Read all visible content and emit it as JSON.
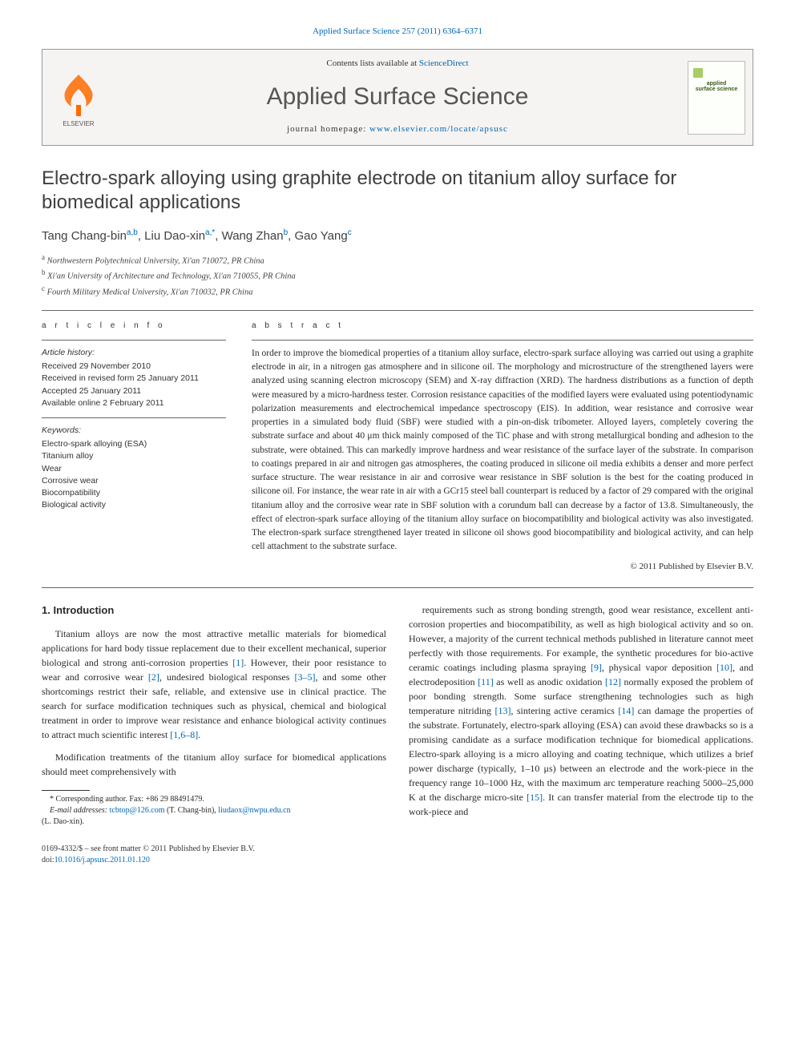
{
  "journal_ref": "Applied Surface Science 257 (2011) 6364–6371",
  "masthead": {
    "contents_prefix": "Contents lists available at ",
    "contents_link": "ScienceDirect",
    "journal_name": "Applied Surface Science",
    "homepage_prefix": "journal homepage: ",
    "homepage_url": "www.elsevier.com/locate/apsusc",
    "cover_line1": "applied",
    "cover_line2": "surface science"
  },
  "title": "Electro-spark alloying using graphite electrode on titanium alloy surface for biomedical applications",
  "authors_html": "Tang Chang-bin<sup>a,b</sup>, Liu Dao-xin<sup>a,*</sup>, Wang Zhan<sup>b</sup>, Gao Yang<sup>c</sup>",
  "affiliations": [
    {
      "sup": "a",
      "text": "Northwestern Polytechnical University, Xi'an 710072, PR China"
    },
    {
      "sup": "b",
      "text": "Xi'an University of Architecture and Technology, Xi'an 710055, PR China"
    },
    {
      "sup": "c",
      "text": "Fourth Military Medical University, Xi'an 710032, PR China"
    }
  ],
  "article_info": {
    "heading": "a r t i c l e   i n f o",
    "history_label": "Article history:",
    "history": [
      "Received 29 November 2010",
      "Received in revised form 25 January 2011",
      "Accepted 25 January 2011",
      "Available online 2 February 2011"
    ],
    "keywords_label": "Keywords:",
    "keywords": [
      "Electro-spark alloying (ESA)",
      "Titanium alloy",
      "Wear",
      "Corrosive wear",
      "Biocompatibility",
      "Biological activity"
    ]
  },
  "abstract": {
    "heading": "a b s t r a c t",
    "text": "In order to improve the biomedical properties of a titanium alloy surface, electro-spark surface alloying was carried out using a graphite electrode in air, in a nitrogen gas atmosphere and in silicone oil. The morphology and microstructure of the strengthened layers were analyzed using scanning electron microscopy (SEM) and X-ray diffraction (XRD). The hardness distributions as a function of depth were measured by a micro-hardness tester. Corrosion resistance capacities of the modified layers were evaluated using potentiodynamic polarization measurements and electrochemical impedance spectroscopy (EIS). In addition, wear resistance and corrosive wear properties in a simulated body fluid (SBF) were studied with a pin-on-disk tribometer. Alloyed layers, completely covering the substrate surface and about 40 μm thick mainly composed of the TiC phase and with strong metallurgical bonding and adhesion to the substrate, were obtained. This can markedly improve hardness and wear resistance of the surface layer of the substrate. In comparison to coatings prepared in air and nitrogen gas atmospheres, the coating produced in silicone oil media exhibits a denser and more perfect surface structure. The wear resistance in air and corrosive wear resistance in SBF solution is the best for the coating produced in silicone oil. For instance, the wear rate in air with a GCr15 steel ball counterpart is reduced by a factor of 29 compared with the original titanium alloy and the corrosive wear rate in SBF solution with a corundum ball can decrease by a factor of 13.8. Simultaneously, the effect of electron-spark surface alloying of the titanium alloy surface on biocompatibility and biological activity was also investigated. The electron-spark surface strengthened layer treated in silicone oil shows good biocompatibility and biological activity, and can help cell attachment to the substrate surface.",
    "copyright": "© 2011 Published by Elsevier B.V."
  },
  "intro": {
    "heading": "1. Introduction",
    "p1_pre": "Titanium alloys are now the most attractive metallic materials for biomedical applications for hard body tissue replacement due to their excellent mechanical, superior biological and strong anti-corrosion properties ",
    "r1": "[1]",
    "p1_mid1": ". However, their poor resistance to wear and corrosive wear ",
    "r2": "[2]",
    "p1_mid2": ", undesired biological responses ",
    "r3": "[3–5]",
    "p1_mid3": ", and some other shortcomings restrict their safe, reliable, and extensive use in clinical practice. The search for surface modification techniques such as physical, chemical and biological treatment in order to improve wear resistance and enhance biological activity continues to attract much scientific interest ",
    "r4": "[1,6–8]",
    "p1_end": ".",
    "p2": "Modification treatments of the titanium alloy surface for biomedical applications should meet comprehensively with",
    "p3_pre": "requirements such as strong bonding strength, good wear resistance, excellent anti-corrosion properties and biocompatibility, as well as high biological activity and so on. However, a majority of the current technical methods published in literature cannot meet perfectly with those requirements. For example, the synthetic procedures for bio-active ceramic coatings including plasma spraying ",
    "r9": "[9]",
    "p3_m1": ", physical vapor deposition ",
    "r10": "[10]",
    "p3_m2": ", and electrodeposition ",
    "r11": "[11]",
    "p3_m3": " as well as anodic oxidation ",
    "r12": "[12]",
    "p3_m4": " normally exposed the problem of poor bonding strength. Some surface strengthening technologies such as high temperature nitriding ",
    "r13": "[13]",
    "p3_m5": ", sintering active ceramics ",
    "r14": "[14]",
    "p3_m6": " can damage the properties of the substrate. Fortunately, electro-spark alloying (ESA) can avoid these drawbacks so is a promising candidate as a surface modification technique for biomedical applications. Electro-spark alloying is a micro alloying and coating technique, which utilizes a brief power discharge (typically, 1–10 μs) between an electrode and the work-piece in the frequency range 10–1000 Hz, with the maximum arc temperature reaching 5000–25,000 K at the discharge micro-site ",
    "r15": "[15]",
    "p3_end": ". It can transfer material from the electrode tip to the work-piece and"
  },
  "footnotes": {
    "corr_label": "* Corresponding author. Fax: +86 29 88491479.",
    "email_label": "E-mail addresses: ",
    "email1": "tcbtop@126.com",
    "email1_who": " (T. Chang-bin), ",
    "email2": "liudaox@nwpu.edu.cn",
    "email2_who": "(L. Dao-xin)."
  },
  "footer": {
    "line1": "0169-4332/$ – see front matter © 2011 Published by Elsevier B.V.",
    "doi_label": "doi:",
    "doi": "10.1016/j.apsusc.2011.01.120"
  },
  "colors": {
    "link": "#0066b3",
    "text": "#2a2a2a",
    "rule": "#666666",
    "masthead_bg": "#f5f4f2",
    "elsevier_orange": "#ff6a00"
  }
}
